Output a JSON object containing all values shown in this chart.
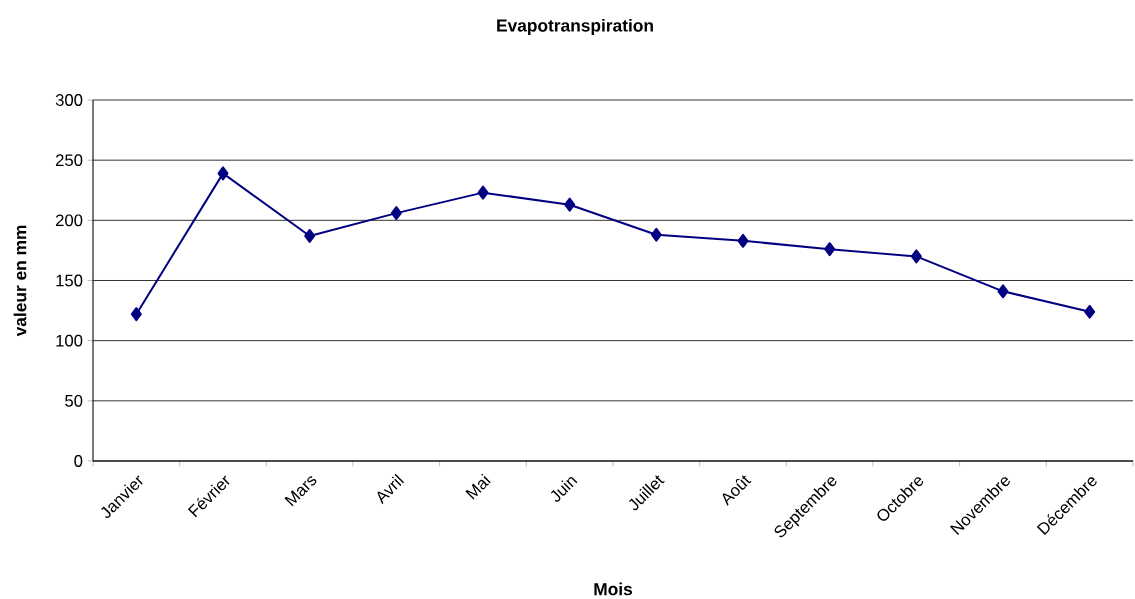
{
  "chart_data": {
    "type": "line",
    "title": "Evapotranspiration",
    "xlabel": "Mois",
    "ylabel": "valeur en mm",
    "categories": [
      "Janvier",
      "Février",
      "Mars",
      "Avril",
      "Mai",
      "Juin",
      "Juillet",
      "Août",
      "Septembre",
      "Octobre",
      "Novembre",
      "Décembre"
    ],
    "series": [
      {
        "color": "#000080",
        "values": [
          122,
          239,
          187,
          206,
          223,
          213,
          188,
          183,
          176,
          170,
          141,
          124
        ]
      }
    ],
    "ylim": [
      0,
      300
    ],
    "yticks": [
      0,
      50,
      100,
      150,
      200,
      250,
      300
    ],
    "grid": "y",
    "marker": "diamond",
    "line_style": "solid"
  }
}
